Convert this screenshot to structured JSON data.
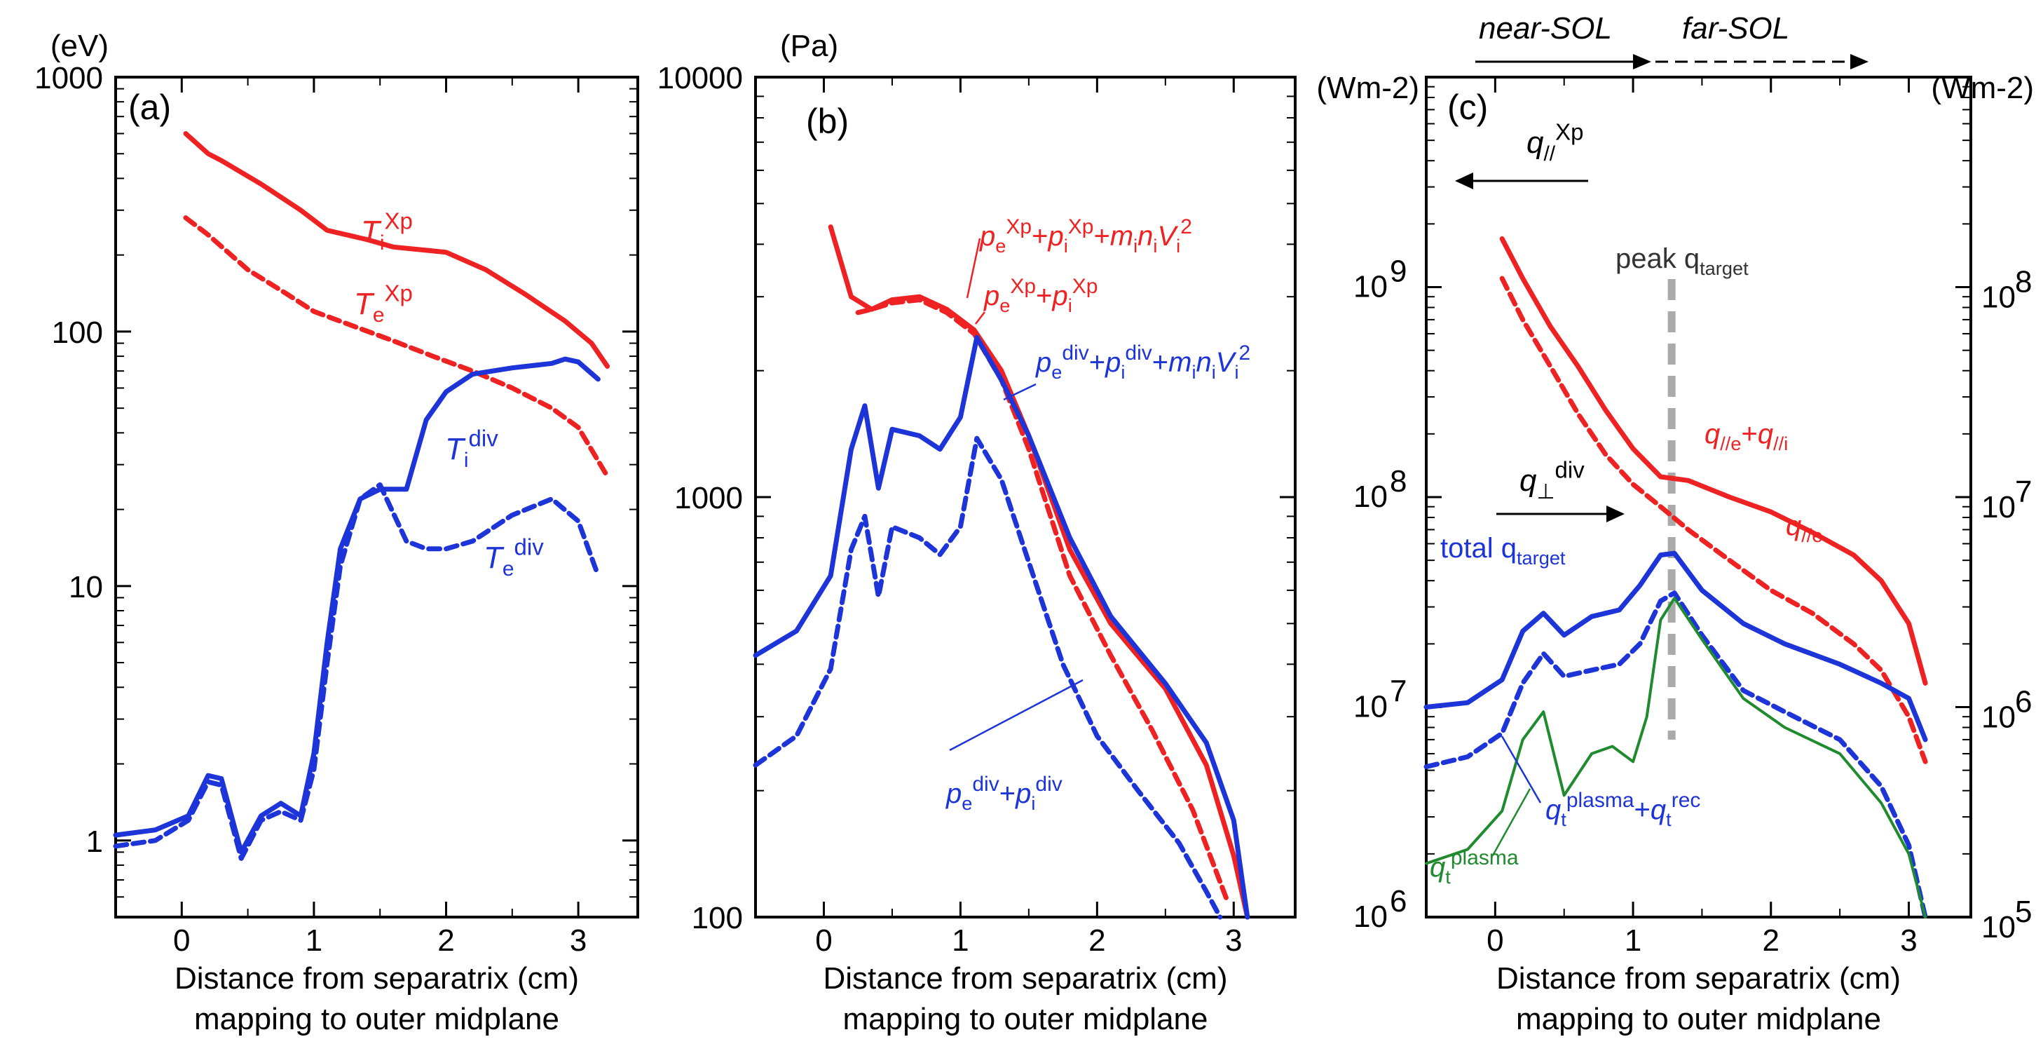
{
  "colors": {
    "red": "#ee2222",
    "blue": "#1c34d8",
    "green": "#1f8a2e",
    "gray": "#aaaaaa",
    "black": "#000000"
  },
  "xlabel_line1": "Distance from separatrix (cm)",
  "xlabel_line2": "mapping to outer midplane",
  "regions": {
    "near": "near-SOL",
    "far": "far-SOL"
  },
  "chart_data": [
    {
      "type": "line",
      "id": "a",
      "panel_tag": "(a)",
      "unit": "(eV)",
      "yscale": "log",
      "ylim": [
        0.5,
        1000
      ],
      "xlim": [
        -0.5,
        3.45
      ],
      "xticks": [
        0,
        1,
        2,
        3
      ],
      "xtick_labels": [
        "0",
        "1",
        "2",
        "3"
      ],
      "yticks": [
        1,
        10,
        100,
        1000
      ],
      "ytick_labels": [
        "1",
        "10",
        "100",
        "1000"
      ],
      "series": [
        {
          "name": "Ti_Xp",
          "label_main": "T",
          "label_sub": "i",
          "label_sup": "Xp",
          "color": "red",
          "dash": false,
          "x": [
            0.03,
            0.2,
            0.3,
            0.6,
            0.9,
            1.1,
            1.4,
            1.6,
            1.8,
            2.0,
            2.3,
            2.6,
            2.9,
            3.1,
            3.22
          ],
          "y": [
            600,
            500,
            470,
            380,
            300,
            250,
            230,
            215,
            210,
            205,
            175,
            140,
            110,
            90,
            73
          ]
        },
        {
          "name": "Te_Xp",
          "label_main": "T",
          "label_sub": "e",
          "label_sup": "Xp",
          "color": "red",
          "dash": true,
          "x": [
            0.03,
            0.2,
            0.5,
            0.8,
            1.0,
            1.3,
            1.6,
            1.9,
            2.2,
            2.5,
            2.8,
            3.0,
            3.22
          ],
          "y": [
            280,
            240,
            175,
            140,
            120,
            105,
            92,
            80,
            70,
            60,
            50,
            42,
            27
          ]
        },
        {
          "name": "Ti_div",
          "label_main": "T",
          "label_sub": "i",
          "label_sup": "div",
          "color": "blue",
          "dash": false,
          "x": [
            -0.5,
            -0.2,
            0.05,
            0.2,
            0.3,
            0.45,
            0.6,
            0.75,
            0.9,
            1.0,
            1.1,
            1.2,
            1.35,
            1.5,
            1.7,
            1.85,
            2.0,
            2.2,
            2.5,
            2.8,
            2.9,
            3.0,
            3.15
          ],
          "y": [
            1.05,
            1.1,
            1.25,
            1.8,
            1.75,
            0.9,
            1.25,
            1.4,
            1.25,
            2.2,
            6.0,
            14,
            22,
            24,
            24,
            45,
            58,
            68,
            72,
            75,
            78,
            76,
            65
          ]
        },
        {
          "name": "Te_div",
          "label_main": "T",
          "label_sub": "e",
          "label_sup": "div",
          "color": "blue",
          "dash": true,
          "x": [
            -0.5,
            -0.2,
            0.05,
            0.2,
            0.3,
            0.45,
            0.6,
            0.75,
            0.9,
            1.0,
            1.1,
            1.2,
            1.35,
            1.5,
            1.7,
            1.85,
            2.0,
            2.2,
            2.5,
            2.8,
            3.0,
            3.15
          ],
          "y": [
            0.95,
            1.0,
            1.2,
            1.7,
            1.65,
            0.85,
            1.2,
            1.3,
            1.2,
            1.9,
            5.0,
            12,
            22,
            25,
            15,
            14,
            14,
            15,
            19,
            22,
            18,
            11
          ]
        }
      ]
    },
    {
      "type": "line",
      "id": "b",
      "panel_tag": "(b)",
      "unit": "(Pa)",
      "yscale": "log",
      "ylim": [
        100,
        10000
      ],
      "xlim": [
        -0.5,
        3.45
      ],
      "xticks": [
        0,
        1,
        2,
        3
      ],
      "xtick_labels": [
        "0",
        "1",
        "2",
        "3"
      ],
      "yticks": [
        100,
        1000,
        10000
      ],
      "ytick_labels": [
        "100",
        "1000",
        "10000"
      ],
      "series": [
        {
          "name": "pXp_total",
          "color": "red",
          "dash": false,
          "label_parts": [
            [
              "p",
              "e",
              "Xp"
            ],
            [
              "+"
            ],
            [
              "p",
              "i",
              "Xp"
            ],
            [
              "+"
            ],
            [
              "m",
              "i",
              ""
            ],
            [
              "n",
              "i",
              ""
            ],
            [
              "V",
              "i",
              "2"
            ]
          ],
          "x": [
            0.05,
            0.2,
            0.35,
            0.5,
            0.7,
            0.9,
            1.1,
            1.3,
            1.5,
            1.8,
            2.1,
            2.5,
            2.8,
            3.0,
            3.1
          ],
          "y": [
            4400,
            3000,
            2800,
            2950,
            3000,
            2800,
            2500,
            2000,
            1400,
            750,
            500,
            350,
            230,
            140,
            100
          ]
        },
        {
          "name": "pXp",
          "color": "red",
          "dash": true,
          "label_parts": [
            [
              "p",
              "e",
              "Xp"
            ],
            [
              "+"
            ],
            [
              "p",
              "i",
              "Xp"
            ]
          ],
          "x": [
            0.25,
            0.35,
            0.5,
            0.7,
            0.9,
            1.1,
            1.3,
            1.5,
            1.8,
            2.1,
            2.4,
            2.7,
            2.95
          ],
          "y": [
            2750,
            2800,
            2900,
            2950,
            2750,
            2450,
            1900,
            1300,
            650,
            420,
            280,
            180,
            110
          ]
        },
        {
          "name": "pdiv_total",
          "color": "blue",
          "dash": false,
          "label_parts": [
            [
              "p",
              "e",
              "div"
            ],
            [
              "+"
            ],
            [
              "p",
              "i",
              "div"
            ],
            [
              "+"
            ],
            [
              "m",
              "i",
              ""
            ],
            [
              "n",
              "i",
              ""
            ],
            [
              "V",
              "i",
              "2"
            ]
          ],
          "x": [
            -0.5,
            -0.2,
            0.05,
            0.2,
            0.3,
            0.4,
            0.5,
            0.7,
            0.85,
            1.0,
            1.12,
            1.3,
            1.5,
            1.8,
            2.1,
            2.5,
            2.8,
            3.0,
            3.1
          ],
          "y": [
            420,
            480,
            650,
            1300,
            1650,
            1050,
            1450,
            1400,
            1300,
            1550,
            2400,
            1900,
            1400,
            800,
            520,
            360,
            260,
            170,
            100
          ]
        },
        {
          "name": "pdiv",
          "color": "blue",
          "dash": true,
          "label_parts": [
            [
              "p",
              "e",
              "div"
            ],
            [
              "+"
            ],
            [
              "p",
              "i",
              "div"
            ]
          ],
          "x": [
            -0.5,
            -0.2,
            0.05,
            0.2,
            0.3,
            0.4,
            0.5,
            0.7,
            0.85,
            1.0,
            1.12,
            1.3,
            1.5,
            1.75,
            2.0,
            2.3,
            2.6,
            2.8,
            2.9
          ],
          "y": [
            230,
            270,
            390,
            750,
            900,
            580,
            850,
            800,
            730,
            850,
            1380,
            1100,
            700,
            400,
            270,
            200,
            150,
            115,
            100
          ]
        }
      ]
    },
    {
      "type": "line",
      "id": "c",
      "panel_tag": "(c)",
      "unit": "(Wm-2)",
      "unit_right": "(Wm-2)",
      "yscale": "log",
      "ylim": [
        1000000,
        10000000000
      ],
      "xlim": [
        -0.5,
        3.45
      ],
      "xticks": [
        0,
        1,
        2,
        3
      ],
      "xtick_labels": [
        "0",
        "1",
        "2",
        "3"
      ],
      "yticks": [
        1000000,
        10000000,
        100000000,
        1000000000
      ],
      "ytick_exponents": [
        "6",
        "7",
        "8",
        "9"
      ],
      "yticks_right_exponents": [
        "5",
        "6",
        "7",
        "8"
      ],
      "yticks_right_positions_left_units": [
        1000000,
        10000000,
        100000000,
        1000000000
      ],
      "peak_x": 1.28,
      "peak_label": "peak q",
      "peak_label_sub": "target",
      "total_label": "total q",
      "total_label_sub": "target",
      "qXp_main": "q",
      "qXp_sub": "//",
      "qXp_sup": "Xp",
      "qdiv_main": "q",
      "qdiv_sub": "⊥",
      "qdiv_sup": "div",
      "series": [
        {
          "name": "q_par_e_plus_i",
          "color": "red",
          "dash": false,
          "label_parts": [
            [
              "q",
              "//e",
              ""
            ],
            [
              "+"
            ],
            [
              "q",
              "//i",
              ""
            ]
          ],
          "x": [
            0.05,
            0.2,
            0.4,
            0.6,
            0.8,
            1.0,
            1.2,
            1.4,
            1.7,
            2.0,
            2.3,
            2.6,
            2.8,
            3.0,
            3.12
          ],
          "y": [
            1700000000.0,
            1100000000.0,
            650000000.0,
            420000000.0,
            260000000.0,
            170000000.0,
            125000000.0,
            120000000.0,
            100000000.0,
            85000000.0,
            68000000.0,
            53000000.0,
            40000000.0,
            25000000.0,
            13000000.0
          ]
        },
        {
          "name": "q_par_e",
          "color": "red",
          "dash": true,
          "label_parts": [
            [
              "q",
              "//e",
              ""
            ]
          ],
          "x": [
            0.05,
            0.2,
            0.4,
            0.6,
            0.8,
            1.0,
            1.2,
            1.4,
            1.7,
            2.0,
            2.3,
            2.6,
            2.8,
            3.0,
            3.12
          ],
          "y": [
            1100000000.0,
            700000000.0,
            420000000.0,
            250000000.0,
            160000000.0,
            115000000.0,
            90000000.0,
            70000000.0,
            50000000.0,
            36000000.0,
            28000000.0,
            20000000.0,
            15000000.0,
            9000000.0,
            5500000.0
          ]
        },
        {
          "name": "q_target_total",
          "color": "blue",
          "dash": false,
          "label_parts": [],
          "x": [
            -0.5,
            -0.2,
            0.05,
            0.2,
            0.35,
            0.5,
            0.7,
            0.9,
            1.05,
            1.2,
            1.3,
            1.5,
            1.8,
            2.1,
            2.5,
            2.8,
            3.0,
            3.12
          ],
          "y": [
            10000000.0,
            10500000.0,
            13500000.0,
            23000000.0,
            28000000.0,
            22000000.0,
            27000000.0,
            29000000.0,
            38000000.0,
            53000000.0,
            54000000.0,
            36000000.0,
            25000000.0,
            20000000.0,
            16000000.0,
            13000000.0,
            11000000.0,
            7000000.0
          ]
        },
        {
          "name": "q_plasma_plus_rec",
          "color": "blue",
          "dash": true,
          "label_parts": [
            [
              "q",
              "t",
              "plasma"
            ],
            [
              "+"
            ],
            [
              "q",
              "t",
              "rec"
            ]
          ],
          "x": [
            -0.5,
            -0.2,
            0.05,
            0.2,
            0.35,
            0.5,
            0.7,
            0.9,
            1.05,
            1.2,
            1.3,
            1.5,
            1.8,
            2.1,
            2.5,
            2.8,
            3.0,
            3.12
          ],
          "y": [
            5200000.0,
            5800000.0,
            7500000.0,
            13000000.0,
            18000000.0,
            14000000.0,
            15000000.0,
            16000000.0,
            20000000.0,
            32000000.0,
            35000000.0,
            22000000.0,
            12000000.0,
            9500000.0,
            7000000.0,
            4200000.0,
            2200000.0,
            1000000.0
          ]
        },
        {
          "name": "q_plasma",
          "color": "green",
          "dash": false,
          "label_parts": [
            [
              "q",
              "t",
              "plasma"
            ]
          ],
          "x": [
            -0.5,
            -0.2,
            0.05,
            0.2,
            0.35,
            0.5,
            0.7,
            0.85,
            1.0,
            1.1,
            1.2,
            1.3,
            1.5,
            1.8,
            2.1,
            2.5,
            2.8,
            3.0,
            3.12
          ],
          "y": [
            1800000.0,
            2100000.0,
            3200000.0,
            7000000.0,
            9500000.0,
            3800000.0,
            6000000.0,
            6500000.0,
            5500000.0,
            9000000.0,
            26000000.0,
            33000000.0,
            21000000.0,
            11000000.0,
            8000000.0,
            6000000.0,
            3500000.0,
            2000000.0,
            1000000.0
          ]
        }
      ]
    }
  ]
}
